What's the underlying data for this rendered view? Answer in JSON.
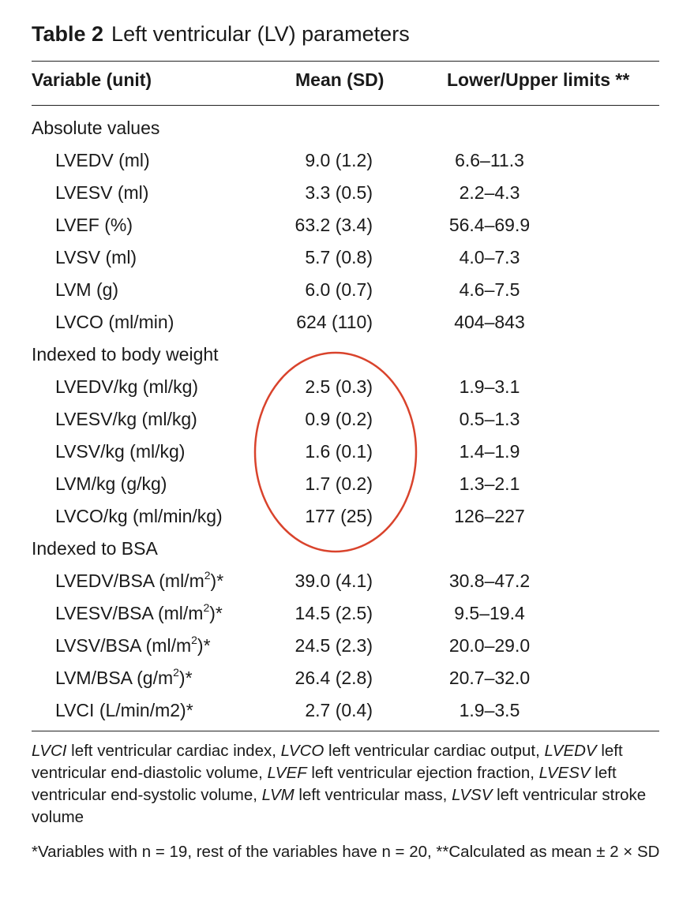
{
  "caption": {
    "label": "Table 2",
    "title": "Left ventricular (LV) parameters"
  },
  "headers": {
    "variable": "Variable (unit)",
    "mean": "Mean (SD)",
    "limits": "Lower/Upper limits **"
  },
  "sections": [
    {
      "title": "Absolute values",
      "rows": [
        {
          "variable": "LVEDV (ml)",
          "mean": "9.0 (1.2)",
          "limits": "6.6–11.3"
        },
        {
          "variable": "LVESV (ml)",
          "mean": "3.3 (0.5)",
          "limits": "2.2–4.3"
        },
        {
          "variable": "LVEF (%)",
          "mean": "63.2 (3.4)",
          "limits": "56.4–69.9"
        },
        {
          "variable": "LVSV (ml)",
          "mean": "5.7 (0.8)",
          "limits": "4.0–7.3"
        },
        {
          "variable": "LVM (g)",
          "mean": "6.0 (0.7)",
          "limits": "4.6–7.5"
        },
        {
          "variable": "LVCO (ml/min)",
          "mean": "624 (110)",
          "limits": "404–843"
        }
      ]
    },
    {
      "title": "Indexed to body weight",
      "rows": [
        {
          "variable": "LVEDV/kg (ml/kg)",
          "mean": "2.5 (0.3)",
          "limits": "1.9–3.1"
        },
        {
          "variable": "LVESV/kg (ml/kg)",
          "mean": "0.9 (0.2)",
          "limits": "0.5–1.3"
        },
        {
          "variable": "LVSV/kg (ml/kg)",
          "mean": "1.6 (0.1)",
          "limits": "1.4–1.9"
        },
        {
          "variable": "LVM/kg (g/kg)",
          "mean": "1.7 (0.2)",
          "limits": "1.3–2.1"
        },
        {
          "variable": "LVCO/kg (ml/min/kg)",
          "mean": "177 (25)",
          "limits": "126–227"
        }
      ]
    },
    {
      "title": "Indexed to BSA",
      "rows": [
        {
          "variable_pre": "LVEDV/BSA (ml/m",
          "variable_sup": "2",
          "variable_post": ")*",
          "mean": "39.0 (4.1)",
          "limits": "30.8–47.2"
        },
        {
          "variable_pre": "LVESV/BSA (ml/m",
          "variable_sup": "2",
          "variable_post": ")*",
          "mean": "14.5 (2.5)",
          "limits": "9.5–19.4"
        },
        {
          "variable_pre": "LVSV/BSA (ml/m",
          "variable_sup": "2",
          "variable_post": ")*",
          "mean": "24.5 (2.3)",
          "limits": "20.0–29.0"
        },
        {
          "variable_pre": "LVM/BSA (g/m",
          "variable_sup": "2",
          "variable_post": ")*",
          "mean": "26.4 (2.8)",
          "limits": "20.7–32.0"
        },
        {
          "variable": "LVCI (L/min/m2)*",
          "mean": "2.7 (0.4)",
          "limits": "1.9–3.5"
        }
      ]
    }
  ],
  "footnote_abbrev": [
    {
      "term": "LVCI",
      "def": " left ventricular cardiac index, "
    },
    {
      "term": "LVCO",
      "def": " left ventricular cardiac output, "
    },
    {
      "term": "LVEDV",
      "def": " left ventricular end-diastolic volume, "
    },
    {
      "term": "LVEF",
      "def": " left ventricular ejection fraction, "
    },
    {
      "term": "LVESV",
      "def": " left ventricular end-systolic volume, "
    },
    {
      "term": "LVM",
      "def": " left ventricular mass, "
    },
    {
      "term": "LVSV",
      "def": " left ventricular stroke volume"
    }
  ],
  "footnote_n": "*Variables with n = 19, rest of the variables have n = 20, **Calculated as mean ± 2 × SD",
  "annotation": {
    "shape": "red ellipse",
    "color": "#d9432c",
    "highlights": "Indexed to body weight – Mean (SD) column"
  }
}
